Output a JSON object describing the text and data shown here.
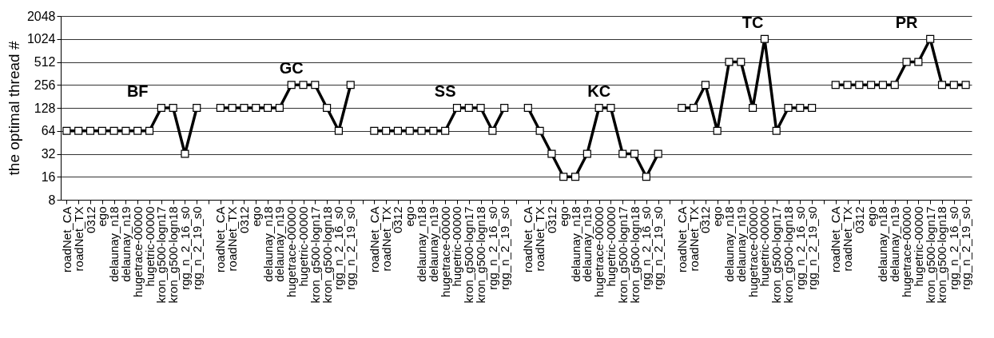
{
  "chart_data": {
    "type": "line",
    "ylabel": "the optimal thread #",
    "categories": [
      "roadNet_CA",
      "roadNet_TX",
      "0312",
      "ego",
      "delaunay_n18",
      "delaunay_n19",
      "hugetrace-00000",
      "hugetric-00000",
      "kron_g500-logn17",
      "kron_g500-logn18",
      "rgg_n_2_16_s0",
      "rgg_n_2_19_s0",
      null,
      "roadNet_CA",
      "roadNet_TX",
      "0312",
      "ego",
      "delaunay_n18",
      "delaunay_n19",
      "hugetrace-00000",
      "hugetric-00000",
      "kron_g500-logn17",
      "kron_g500-logn18",
      "rgg_n_2_16_s0",
      "rgg_n_2_19_s0",
      null,
      "roadNet_CA",
      "roadNet_TX",
      "0312",
      "ego",
      "delaunay_n18",
      "delaunay_n19",
      "hugetrace-00000",
      "hugetric-00000",
      "kron_g500-logn17",
      "kron_g500-logn18",
      "rgg_n_2_16_s0",
      "rgg_n_2_19_s0",
      null,
      "roadNet_CA",
      "roadNet_TX",
      "0312",
      "ego",
      "delaunay_n18",
      "delaunay_n19",
      "hugetrace-00000",
      "hugetric-00000",
      "kron_g500-logn17",
      "kron_g500-logn18",
      "rgg_n_2_16_s0",
      "rgg_n_2_19_s0",
      null,
      "roadNet_CA",
      "roadNet_TX",
      "0312",
      "ego",
      "delaunay_n18",
      "delaunay_n19",
      "hugetrace-00000",
      "hugetric-00000",
      "kron_g500-logn17",
      "kron_g500-logn18",
      "rgg_n_2_16_s0",
      "rgg_n_2_19_s0",
      null,
      "roadNet_CA",
      "roadNet_TX",
      "0312",
      "ego",
      "delaunay_n18",
      "delaunay_n19",
      "hugetrace-00000",
      "hugetric-00000",
      "kron_g500-logn17",
      "kron_g500-logn18",
      "rgg_n_2_16_s0",
      "rgg_n_2_19_s0"
    ],
    "series": [
      {
        "name": "BF",
        "color": "#000000",
        "values": [
          64,
          64,
          64,
          64,
          64,
          64,
          64,
          64,
          128,
          128,
          32,
          128,
          null,
          null,
          null,
          null,
          null,
          null,
          null,
          null,
          null,
          null,
          null,
          null,
          null,
          null,
          null,
          null,
          null,
          null,
          null,
          null,
          null,
          null,
          null,
          null,
          null,
          null,
          null,
          null,
          null,
          null,
          null,
          null,
          null,
          null,
          null,
          null,
          null,
          null,
          null,
          null,
          null,
          null,
          null,
          null,
          null,
          null,
          null,
          null,
          null,
          null,
          null,
          null,
          null,
          null,
          null,
          null,
          null,
          null,
          null,
          null,
          null,
          null,
          null,
          null,
          null
        ]
      },
      {
        "name": "GC",
        "color": "#000000",
        "values": [
          null,
          null,
          null,
          null,
          null,
          null,
          null,
          null,
          null,
          null,
          null,
          null,
          null,
          128,
          128,
          128,
          128,
          128,
          128,
          256,
          256,
          256,
          128,
          64,
          256,
          null,
          null,
          null,
          null,
          null,
          null,
          null,
          null,
          null,
          null,
          null,
          null,
          null,
          null,
          null,
          null,
          null,
          null,
          null,
          null,
          null,
          null,
          null,
          null,
          null,
          null,
          null,
          null,
          null,
          null,
          null,
          null,
          null,
          null,
          null,
          null,
          null,
          null,
          null,
          null,
          null,
          null,
          null,
          null,
          null,
          null,
          null,
          null,
          null,
          null,
          null,
          null
        ]
      },
      {
        "name": "SS",
        "color": "#000000",
        "values": [
          null,
          null,
          null,
          null,
          null,
          null,
          null,
          null,
          null,
          null,
          null,
          null,
          null,
          null,
          null,
          null,
          null,
          null,
          null,
          null,
          null,
          null,
          null,
          null,
          null,
          null,
          64,
          64,
          64,
          64,
          64,
          64,
          64,
          128,
          128,
          128,
          64,
          128,
          null,
          null,
          null,
          null,
          null,
          null,
          null,
          null,
          null,
          null,
          null,
          null,
          null,
          null,
          null,
          null,
          null,
          null,
          null,
          null,
          null,
          null,
          null,
          null,
          null,
          null,
          null,
          null,
          null,
          null,
          null,
          null,
          null,
          null,
          null,
          null,
          null,
          null,
          null
        ]
      },
      {
        "name": "KC",
        "color": "#000000",
        "values": [
          null,
          null,
          null,
          null,
          null,
          null,
          null,
          null,
          null,
          null,
          null,
          null,
          null,
          null,
          null,
          null,
          null,
          null,
          null,
          null,
          null,
          null,
          null,
          null,
          null,
          null,
          null,
          null,
          null,
          null,
          null,
          null,
          null,
          null,
          null,
          null,
          null,
          null,
          null,
          128,
          64,
          32,
          16,
          16,
          32,
          128,
          128,
          32,
          32,
          16,
          32,
          null,
          null,
          null,
          null,
          null,
          null,
          null,
          null,
          null,
          null,
          null,
          null,
          null,
          null,
          null,
          null,
          null,
          null,
          null,
          null,
          null,
          null,
          null,
          null,
          null,
          null
        ]
      },
      {
        "name": "TC",
        "color": "#000000",
        "values": [
          null,
          null,
          null,
          null,
          null,
          null,
          null,
          null,
          null,
          null,
          null,
          null,
          null,
          null,
          null,
          null,
          null,
          null,
          null,
          null,
          null,
          null,
          null,
          null,
          null,
          null,
          null,
          null,
          null,
          null,
          null,
          null,
          null,
          null,
          null,
          null,
          null,
          null,
          null,
          null,
          null,
          null,
          null,
          null,
          null,
          null,
          null,
          null,
          null,
          null,
          null,
          null,
          128,
          128,
          256,
          64,
          512,
          512,
          128,
          1024,
          64,
          128,
          128,
          128,
          null,
          null,
          null,
          null,
          null,
          null,
          null,
          null,
          null,
          null,
          null,
          null,
          null
        ]
      },
      {
        "name": "PR",
        "color": "#000000",
        "values": [
          null,
          null,
          null,
          null,
          null,
          null,
          null,
          null,
          null,
          null,
          null,
          null,
          null,
          null,
          null,
          null,
          null,
          null,
          null,
          null,
          null,
          null,
          null,
          null,
          null,
          null,
          null,
          null,
          null,
          null,
          null,
          null,
          null,
          null,
          null,
          null,
          null,
          null,
          null,
          null,
          null,
          null,
          null,
          null,
          null,
          null,
          null,
          null,
          null,
          null,
          null,
          null,
          null,
          null,
          null,
          null,
          null,
          null,
          null,
          null,
          null,
          null,
          null,
          null,
          null,
          256,
          256,
          256,
          256,
          256,
          256,
          512,
          512,
          1024,
          256,
          256,
          256
        ]
      }
    ],
    "log": true,
    "ylim": [
      8,
      2048
    ],
    "yticks": [
      8,
      16,
      32,
      64,
      128,
      256,
      512,
      1024,
      2048
    ],
    "grid": "y",
    "marker": "square",
    "line_style": "solid"
  }
}
